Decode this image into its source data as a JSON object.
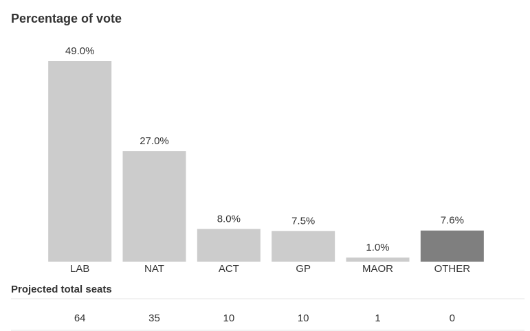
{
  "chart_data": {
    "type": "bar",
    "title": "Percentage of vote",
    "categories": [
      "LAB",
      "NAT",
      "ACT",
      "GP",
      "MAOR",
      "OTHER"
    ],
    "values": [
      49.0,
      27.0,
      8.0,
      7.5,
      1.0,
      7.6
    ],
    "value_labels": [
      "49.0%",
      "27.0%",
      "8.0%",
      "7.5%",
      "1.0%",
      "7.6%"
    ],
    "colors": [
      "#cccccc",
      "#cccccc",
      "#cccccc",
      "#cccccc",
      "#cccccc",
      "#7f7f7f"
    ]
  },
  "seats_table": {
    "title": "Projected total seats",
    "values": [
      64,
      35,
      10,
      10,
      1,
      0
    ]
  }
}
